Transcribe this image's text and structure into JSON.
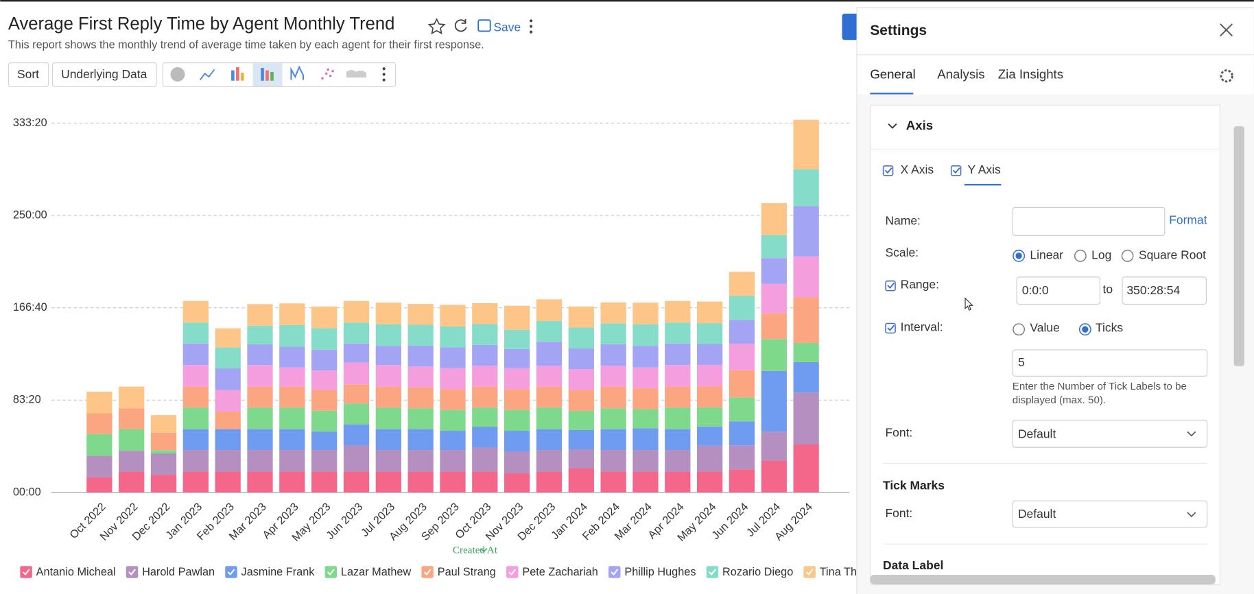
{
  "header": {
    "title": "Average First Reply Time by Agent Monthly Trend",
    "subtitle": "This report shows the monthly trend of average time taken by each agent for their first response.",
    "save": "Save"
  },
  "toolbar": {
    "sort": "Sort",
    "underlying_data": "Underlying Data"
  },
  "chart_data": {
    "type": "stacked_bar",
    "x_label": "Created At",
    "categories": [
      "Oct 2022",
      "Nov 2022",
      "Dec 2022",
      "Jan 2023",
      "Feb 2023",
      "Mar 2023",
      "Apr 2023",
      "May 2023",
      "Jun 2023",
      "Jul 2023",
      "Aug 2023",
      "Sep 2023",
      "Oct 2023",
      "Nov 2023",
      "Dec 2023",
      "Jan 2024",
      "Feb 2024",
      "Mar 2024",
      "Apr 2024",
      "May 2024",
      "Jun 2024",
      "Jul 2024",
      "Aug 2024"
    ],
    "ylim": [
      0,
      21000
    ],
    "yticks": [
      {
        "value": 0,
        "label": "00:00"
      },
      {
        "value": 5000,
        "label": "83:20"
      },
      {
        "value": 10000,
        "label": "166:40"
      },
      {
        "value": 15000,
        "label": "250:00"
      },
      {
        "value": 20000,
        "label": "333:20"
      }
    ],
    "grid": true,
    "series": [
      {
        "name": "Antanio Micheal",
        "color": "#f5678a",
        "values": [
          820,
          1130,
          950,
          1130,
          1130,
          1130,
          1130,
          1130,
          1130,
          1130,
          1130,
          1130,
          1130,
          1040,
          1130,
          1300,
          1130,
          1130,
          1130,
          1130,
          1250,
          1730,
          2600
        ]
      },
      {
        "name": "Harold Pawlan",
        "color": "#b58fc0",
        "values": [
          1170,
          1130,
          1170,
          1170,
          1170,
          1170,
          1170,
          1170,
          1430,
          1170,
          1170,
          1170,
          1300,
          1170,
          1170,
          1040,
          1170,
          1170,
          1170,
          1400,
          1300,
          1560,
          2810
        ]
      },
      {
        "name": "Jasmine Frank",
        "color": "#6f9cf0",
        "values": [
          0,
          0,
          0,
          1130,
          1130,
          1130,
          1130,
          1000,
          1130,
          1130,
          1130,
          1040,
          1130,
          1130,
          1130,
          1040,
          1130,
          1170,
          1130,
          1040,
          1300,
          3290,
          1650
        ]
      },
      {
        "name": "Lazar Mathew",
        "color": "#7fd98d",
        "values": [
          1170,
          1170,
          170,
          1170,
          0,
          1170,
          1170,
          1130,
          1130,
          1170,
          1130,
          1130,
          1040,
          1130,
          1170,
          1040,
          1130,
          1040,
          1170,
          1040,
          1300,
          1730,
          1040
        ]
      },
      {
        "name": "Paul Strang",
        "color": "#fba681",
        "values": [
          1130,
          1130,
          950,
          1130,
          950,
          1130,
          1130,
          1130,
          1040,
          1130,
          1130,
          1130,
          1130,
          1130,
          1130,
          1130,
          1170,
          1130,
          1130,
          1130,
          1470,
          1390,
          2470
        ]
      },
      {
        "name": "Pete Zachariah",
        "color": "#f59ede",
        "values": [
          0,
          0,
          0,
          1170,
          1170,
          1170,
          1040,
          1040,
          1170,
          1170,
          1130,
          1130,
          1130,
          1130,
          1130,
          1130,
          1130,
          1130,
          1170,
          1170,
          1430,
          1600,
          2210
        ]
      },
      {
        "name": "Phillip Hughes",
        "color": "#a3a4f3",
        "values": [
          0,
          0,
          0,
          1170,
          1170,
          1130,
          1130,
          1130,
          1040,
          1040,
          1130,
          1130,
          1130,
          1040,
          1300,
          1130,
          1170,
          1170,
          1170,
          1130,
          1300,
          1390,
          2730
        ]
      },
      {
        "name": "Rozario Diego",
        "color": "#85dcc9",
        "values": [
          0,
          0,
          0,
          1130,
          1130,
          1000,
          1170,
          1170,
          1130,
          1170,
          1130,
          1130,
          1130,
          1040,
          1130,
          1130,
          1130,
          1170,
          1130,
          1130,
          1300,
          1250,
          1990
        ]
      },
      {
        "name": "Tina Thomas",
        "color": "#fdc587",
        "values": [
          1170,
          1170,
          950,
          1170,
          1040,
          1170,
          1170,
          1170,
          1170,
          1170,
          1130,
          1170,
          1130,
          1300,
          1170,
          1130,
          1130,
          1170,
          1170,
          1170,
          1300,
          1730,
          2680
        ]
      }
    ]
  },
  "settings": {
    "title": "Settings",
    "tabs": [
      "General",
      "Analysis",
      "Zia Insights"
    ],
    "section": "Axis",
    "axis_options": [
      "X Axis",
      "Y Axis"
    ],
    "name_label": "Name:",
    "format": "Format",
    "scale_label": "Scale:",
    "scale_options": [
      "Linear",
      "Log",
      "Square Root"
    ],
    "range_label": "Range:",
    "range_from": "0:0:0",
    "range_to_label": "to",
    "range_to": "350:28:54",
    "interval_label": "Interval:",
    "interval_options": [
      "Value",
      "Ticks"
    ],
    "interval_value": "5",
    "hint_lines": [
      "Enter the Number of Tick Labels to be",
      "displayed (max. 50)."
    ],
    "font_label": "Font:",
    "font_value": "Default",
    "tick_marks": "Tick Marks",
    "tick_font_label": "Font:",
    "tick_font_value": "Default",
    "data_label": "Data Label"
  }
}
